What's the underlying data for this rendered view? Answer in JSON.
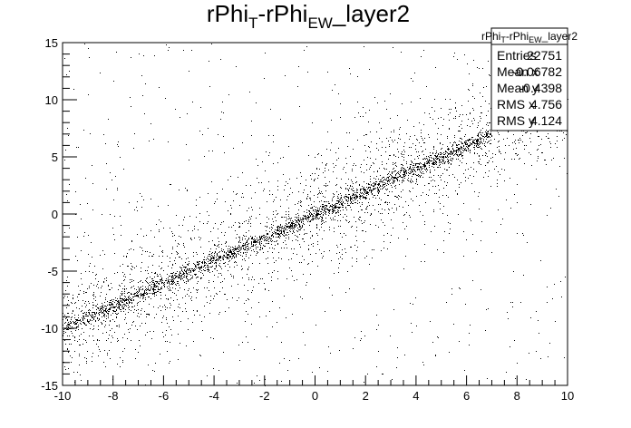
{
  "chart_data": {
    "type": "scatter",
    "title": {
      "base1": "rPhi",
      "sub1": "T",
      "base2": "-rPhi",
      "sub2": "EW",
      "tail": "_layer2"
    },
    "xlabel": "",
    "ylabel": "",
    "xlim": [
      -10,
      10
    ],
    "ylim": [
      -15,
      15
    ],
    "x_ticks": [
      "-10",
      "-8",
      "-6",
      "-4",
      "-2",
      "0",
      "2",
      "4",
      "6",
      "8",
      "10"
    ],
    "y_ticks": [
      "-15",
      "-10",
      "-5",
      "0",
      "5",
      "10",
      "15"
    ],
    "grid": false,
    "legend": "none",
    "stats_box": {
      "name": {
        "base1": "rPhi",
        "sub1": "T",
        "base2": "-rPhi",
        "sub2": "EW",
        "tail": "_layer2"
      },
      "rows": [
        {
          "label": "Entries",
          "value": "22751"
        },
        {
          "label": "Mean x",
          "value": "-0.06782"
        },
        {
          "label": "Mean y",
          "value": "-0.4398"
        },
        {
          "label": "RMS x",
          "value": "4.756"
        },
        {
          "label": "RMS y",
          "value": "4.124"
        }
      ]
    },
    "distribution": {
      "entries": 22751,
      "band_slope": 1.0,
      "band_intercept": 0.0,
      "band_end_x": 7.0,
      "core_fraction": 0.45,
      "core_sigma": 0.35,
      "halo_fraction": 0.43,
      "halo_sigma": 2.6,
      "uniform_fraction": 0.12
    },
    "marker_color": "#000000"
  }
}
